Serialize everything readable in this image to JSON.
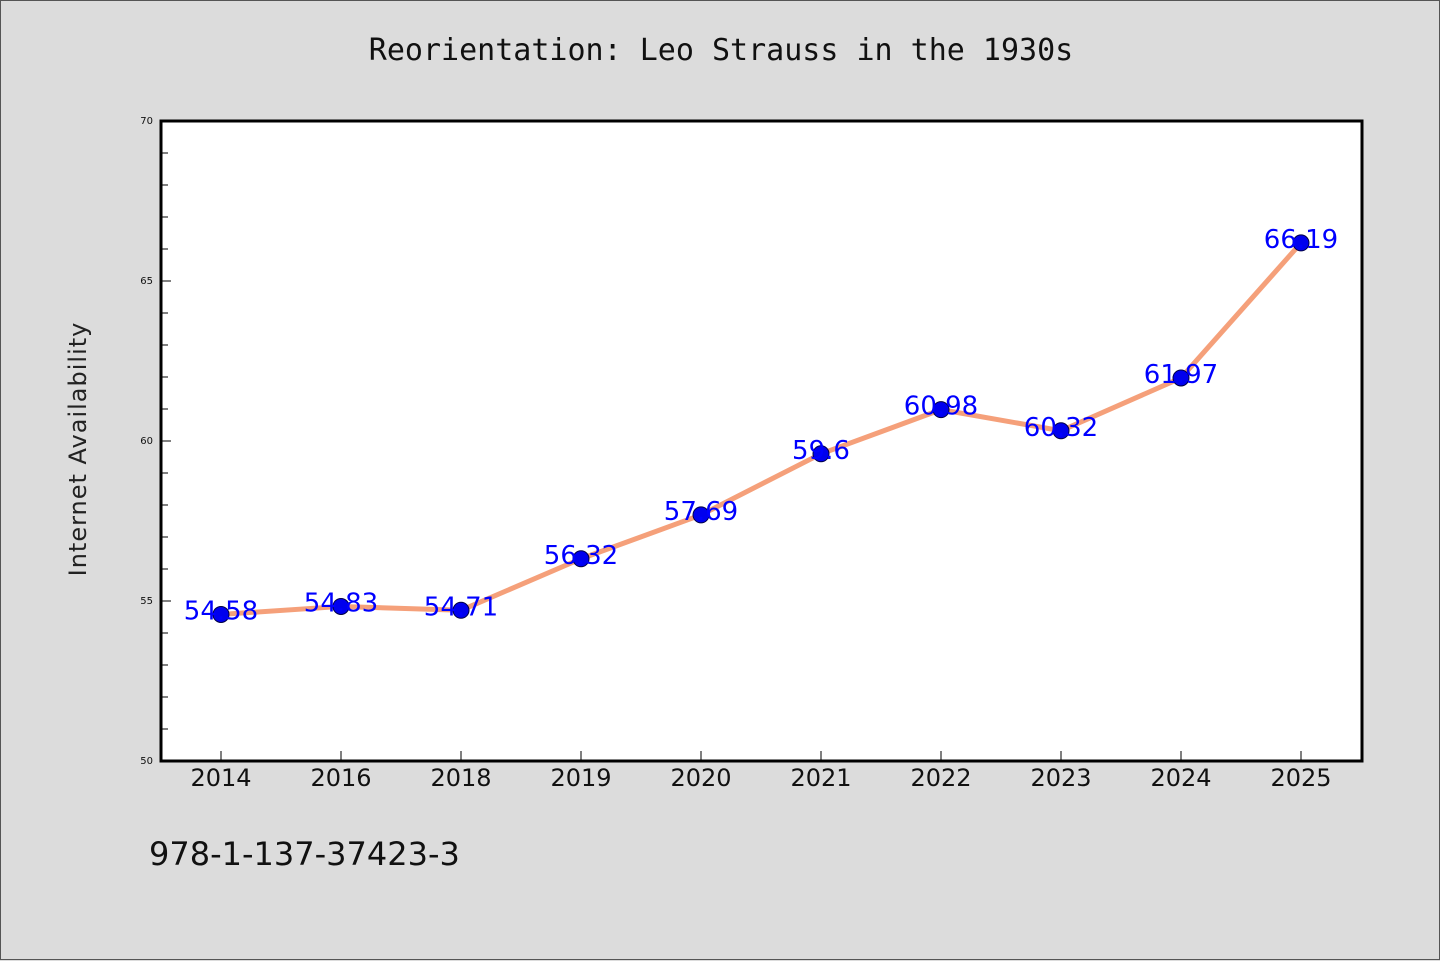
{
  "title": "Reorientation: Leo Strauss in the 1930s",
  "footer_text": "978-1-137-37423-3",
  "colors": {
    "background": "#dcdcdc",
    "plot_background": "#ffffff",
    "line": "#f5a07a",
    "marker": "#0000ee",
    "data_label": "#0000ff"
  },
  "chart_data": {
    "type": "line",
    "title": "Reorientation: Leo Strauss in the 1930s",
    "xlabel": "",
    "ylabel": "Internet Availability",
    "categories": [
      "2014",
      "2016",
      "2018",
      "2019",
      "2020",
      "2021",
      "2022",
      "2023",
      "2024",
      "2025"
    ],
    "values": [
      54.58,
      54.83,
      54.71,
      56.32,
      57.69,
      59.6,
      60.98,
      60.32,
      61.97,
      66.19
    ],
    "data_labels": [
      "54.58",
      "54.83",
      "54.71",
      "56.32",
      "57.69",
      "59.6",
      "60.98",
      "60.32",
      "61.97",
      "66.19"
    ],
    "ylim": [
      50,
      70
    ],
    "y_major_ticks": [
      50,
      55,
      60,
      65,
      70
    ],
    "y_minor_step": 1,
    "grid": false,
    "legend": "none"
  }
}
